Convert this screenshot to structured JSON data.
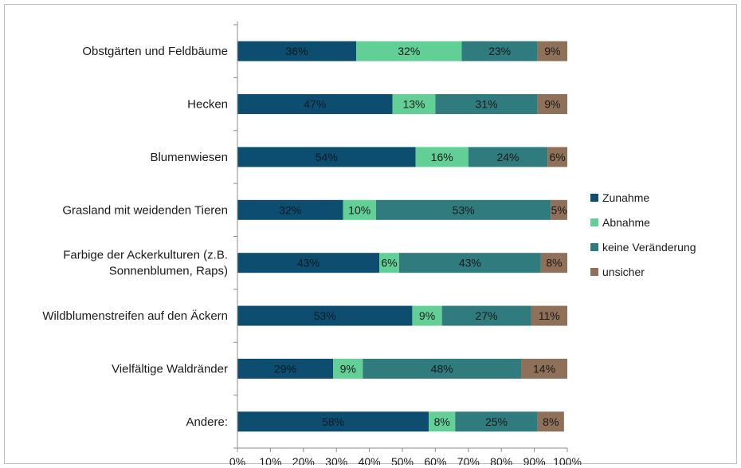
{
  "chart_data": {
    "type": "bar",
    "orientation": "horizontal",
    "stacked": true,
    "percent_stacked": true,
    "categories": [
      [
        "Obstgärten  und Feldbäume"
      ],
      [
        "Hecken"
      ],
      [
        "Blumenwiesen"
      ],
      [
        "Grasland mit weidenden Tieren"
      ],
      [
        "Farbige der Ackerkulturen (z.B.",
        "Sonnenblumen, Raps)"
      ],
      [
        "Wildblumenstreifen auf den Äckern"
      ],
      [
        "Vielfältige Waldränder"
      ],
      [
        "Andere:"
      ]
    ],
    "series": [
      {
        "name": "Zunahme",
        "color": "#0d4d70",
        "label_color": "#0b1a24",
        "values": [
          36,
          47,
          54,
          32,
          43,
          53,
          29,
          58
        ]
      },
      {
        "name": "Abnahme",
        "color": "#62cf96",
        "label_color": "#1a1a1a",
        "values": [
          32,
          13,
          16,
          10,
          6,
          9,
          9,
          8
        ]
      },
      {
        "name": "keine Veränderung",
        "color": "#2f7b7e",
        "label_color": "#1a1a1a",
        "values": [
          23,
          31,
          24,
          53,
          43,
          27,
          48,
          25
        ]
      },
      {
        "name": "unsicher",
        "color": "#8f7058",
        "label_color": "#1a1a1a",
        "values": [
          9,
          9,
          6,
          5,
          8,
          11,
          14,
          8
        ]
      }
    ],
    "xlim": [
      0,
      100
    ],
    "x_ticks": [
      "0%",
      "10%",
      "20%",
      "30%",
      "40%",
      "50%",
      "60%",
      "70%",
      "80%",
      "90%",
      "100%"
    ],
    "xlabel": "",
    "ylabel": "",
    "title": "",
    "grid": false,
    "legend_position": "right"
  }
}
